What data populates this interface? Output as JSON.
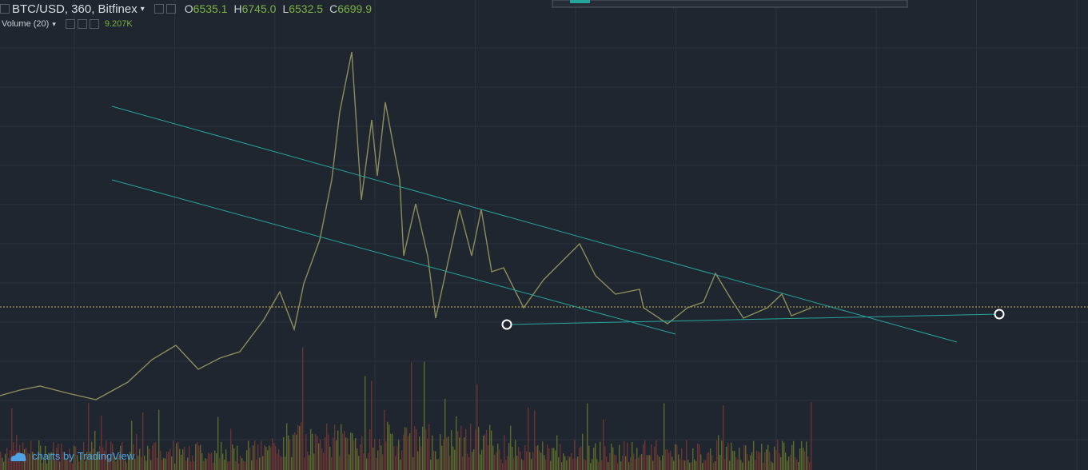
{
  "header": {
    "symbol": "BTC/USD, 360, Bitfinex",
    "ohlc": [
      {
        "key": "O",
        "value": "6535.1"
      },
      {
        "key": "H",
        "value": "6745.0"
      },
      {
        "key": "L",
        "value": "6532.5"
      },
      {
        "key": "C",
        "value": "6699.9"
      }
    ]
  },
  "volume": {
    "label": "Volume (20)",
    "value": "9.207K"
  },
  "branding": {
    "prefix": "charts by",
    "name": "TradingView"
  }
}
